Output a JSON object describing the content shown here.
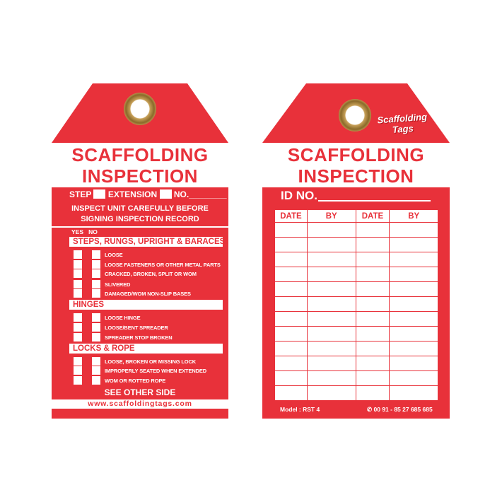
{
  "front": {
    "title_line1": "SCAFFOLDING",
    "title_line2": "INSPECTION",
    "step_label": "STEP",
    "extension_label": "EXTENSION",
    "no_label": "NO.________",
    "instruction_line1": "INSPECT UNIT CAREFULLY BEFORE",
    "instruction_line2": "SIGNING INSPECTION RECORD",
    "yes_label": "YES",
    "no_col_label": "NO",
    "sections": [
      {
        "title": "STEPS, RUNGS, UPRIGHT & BARACES",
        "items": [
          "LOOSE",
          "LOOSE FASTENERS OR OTHER METAL PARTS",
          "CRACKED, BROKEN, SPLIT OR WOM",
          "SLIVERED",
          "DAMAGED/WOM NON-SLIP BASES"
        ]
      },
      {
        "title": "HINGES",
        "items": [
          "LOOSE HINGE",
          "LOOSE/BENT SPREADER",
          "SPREADER STOP BROKEN"
        ]
      },
      {
        "title": "LOCKS & ROPE",
        "items": [
          "LOOSE, BROKEN OR MISSING LOCK",
          "IMPROPERLY SEATED WHEN EXTENDED",
          "WOM OR ROTTED ROPE"
        ]
      }
    ],
    "see_other_side": "SEE OTHER SIDE",
    "website": "www.scaffoldingtags.com"
  },
  "back": {
    "logo_line1": "Scaffolding",
    "logo_line2": "Tags",
    "title_line1": "SCAFFOLDING",
    "title_line2": "INSPECTION",
    "id_label": "ID NO.",
    "columns": [
      "DATE",
      "BY",
      "DATE",
      "BY"
    ],
    "model": "Model : RST 4",
    "phone": "00 91 - 85 27 685 685",
    "phone_icon": "phone-icon"
  },
  "colors": {
    "brand_red": "#e8313a",
    "grommet": "#b8904a"
  }
}
